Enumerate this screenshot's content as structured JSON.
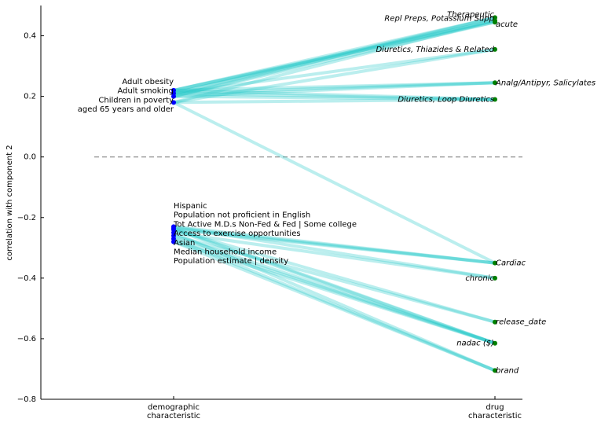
{
  "chart_data": {
    "type": "slope",
    "ylabel": "correlation with component 2",
    "categories": [
      "demographic\ncharacteristic",
      "drug\ncharacteristic"
    ],
    "ylim": [
      -0.8,
      0.5
    ],
    "yticks": [
      {
        "value": -0.8,
        "label": "−0.8"
      },
      {
        "value": -0.6,
        "label": "−0.6"
      },
      {
        "value": -0.4,
        "label": "−0.4"
      },
      {
        "value": -0.2,
        "label": "−0.2"
      },
      {
        "value": 0,
        "label": "0.0"
      },
      0.2,
      0.4
    ],
    "zero_line": true,
    "edge_color": "#1fc8c8",
    "nodes": [
      {
        "color": "#0000ff",
        "labels": [
          "Adult obesity",
          "Adult smoking",
          "Children in poverty",
          "aged 65 years and older",
          "Hispanic",
          "Population not proficient in English",
          "Tot Active M.D.s Non-Fed & Fed | Some college",
          "Access to exercise opportunities",
          "Asian",
          "Median household income",
          "Population estimate  | density"
        ],
        "values": [
          0.22,
          0.21,
          0.2,
          0.18,
          -0.23,
          -0.24,
          -0.235,
          -0.26,
          -0.28,
          -0.27,
          -0.25
        ]
      },
      {
        "color": "#008000",
        "labels": [
          "Therapeutic",
          "Repl Preps, Potassium Supp",
          "acute",
          "Diuretics, Thiazides & Related",
          "Analg/Antipyr, Salicylates",
          "Diuretics, Loop Diuretics",
          "Cardiac",
          "chronic",
          "release_date",
          "nadac ($)",
          "brand"
        ],
        "values": [
          0.46,
          0.45,
          0.445,
          0.355,
          0.245,
          0.19,
          -0.35,
          -0.4,
          -0.545,
          -0.615,
          -0.705
        ]
      }
    ],
    "edges": [
      [
        0,
        0
      ],
      [
        0,
        1
      ],
      [
        0,
        2
      ],
      [
        0,
        4
      ],
      [
        0,
        5
      ],
      [
        1,
        0
      ],
      [
        1,
        1
      ],
      [
        1,
        3
      ],
      [
        1,
        4
      ],
      [
        1,
        5
      ],
      [
        2,
        0
      ],
      [
        2,
        2
      ],
      [
        2,
        4
      ],
      [
        2,
        5
      ],
      [
        3,
        1
      ],
      [
        3,
        3
      ],
      [
        3,
        5
      ],
      [
        3,
        6
      ],
      [
        4,
        6
      ],
      [
        4,
        7
      ],
      [
        5,
        6
      ],
      [
        5,
        9
      ],
      [
        6,
        6
      ],
      [
        6,
        9
      ],
      [
        7,
        8
      ],
      [
        7,
        9
      ],
      [
        8,
        9
      ],
      [
        8,
        10
      ],
      [
        9,
        10
      ],
      [
        9,
        9
      ],
      [
        10,
        7
      ],
      [
        10,
        10
      ],
      [
        5,
        8
      ]
    ]
  }
}
